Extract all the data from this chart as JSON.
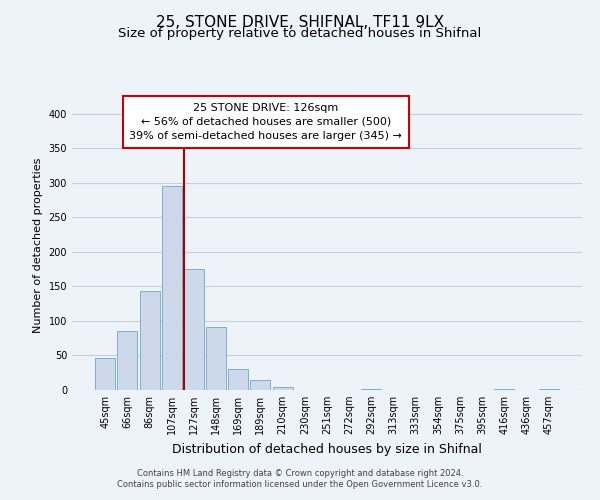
{
  "title": "25, STONE DRIVE, SHIFNAL, TF11 9LX",
  "subtitle": "Size of property relative to detached houses in Shifnal",
  "xlabel": "Distribution of detached houses by size in Shifnal",
  "ylabel": "Number of detached properties",
  "bin_labels": [
    "45sqm",
    "66sqm",
    "86sqm",
    "107sqm",
    "127sqm",
    "148sqm",
    "169sqm",
    "189sqm",
    "210sqm",
    "230sqm",
    "251sqm",
    "272sqm",
    "292sqm",
    "313sqm",
    "333sqm",
    "354sqm",
    "375sqm",
    "395sqm",
    "416sqm",
    "436sqm",
    "457sqm"
  ],
  "bar_heights": [
    47,
    86,
    144,
    296,
    175,
    91,
    30,
    14,
    5,
    0,
    0,
    0,
    2,
    0,
    0,
    0,
    0,
    0,
    2,
    0,
    2
  ],
  "bar_color": "#cdd9ea",
  "bar_edge_color": "#7bafd4",
  "vline_x_index": 4,
  "vline_color": "#aa0000",
  "annotation_title": "25 STONE DRIVE: 126sqm",
  "annotation_line1": "← 56% of detached houses are smaller (500)",
  "annotation_line2": "39% of semi-detached houses are larger (345) →",
  "annotation_box_facecolor": "#ffffff",
  "annotation_box_edgecolor": "#cc0000",
  "ylim": [
    0,
    420
  ],
  "yticks": [
    0,
    50,
    100,
    150,
    200,
    250,
    300,
    350,
    400
  ],
  "background_color": "#eef2f9",
  "grid_color": "#c8d0dc",
  "footer_line1": "Contains HM Land Registry data © Crown copyright and database right 2024.",
  "footer_line2": "Contains public sector information licensed under the Open Government Licence v3.0.",
  "title_fontsize": 11,
  "subtitle_fontsize": 9.5,
  "xlabel_fontsize": 9,
  "ylabel_fontsize": 8,
  "tick_fontsize": 7,
  "annotation_fontsize": 8,
  "footer_fontsize": 6
}
